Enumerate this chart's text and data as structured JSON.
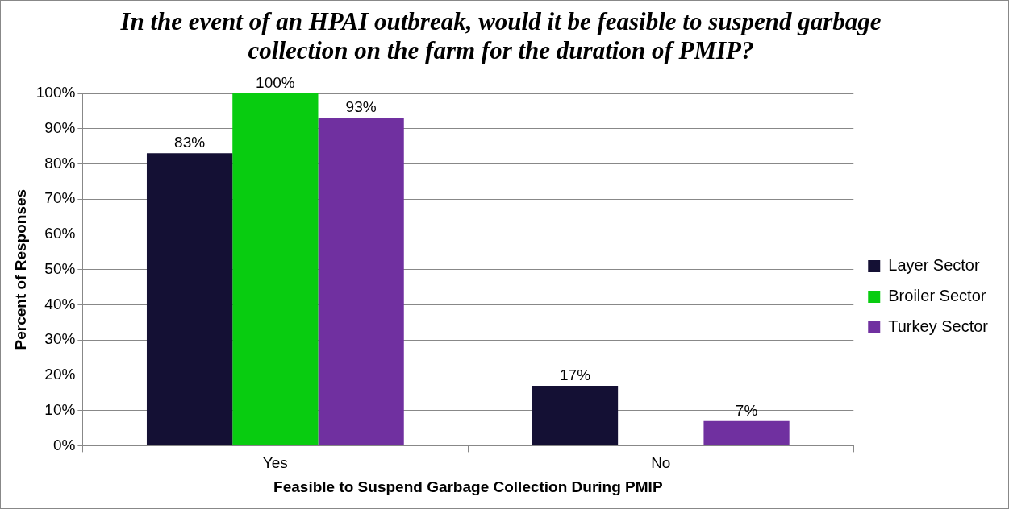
{
  "chart_data": {
    "type": "bar",
    "title": "In the event of an HPAI outbreak, would it be feasible to suspend garbage collection on the farm for the duration of PMIP?",
    "xlabel": "Feasible to Suspend Garbage Collection During PMIP",
    "ylabel": "Percent of Responses",
    "categories": [
      "Yes",
      "No"
    ],
    "series": [
      {
        "name": "Layer Sector",
        "color": "#141034",
        "values": [
          83,
          17
        ],
        "value_labels": [
          "83%",
          "17%"
        ]
      },
      {
        "name": "Broiler Sector",
        "color": "#08cc10",
        "values": [
          100,
          0
        ],
        "value_labels": [
          "100%",
          null
        ]
      },
      {
        "name": "Turkey Sector",
        "color": "#7030a0",
        "values": [
          93,
          7
        ],
        "value_labels": [
          "93%",
          "7%"
        ]
      }
    ],
    "ylim": [
      0,
      100
    ],
    "yticks": [
      {
        "value": 0,
        "label": "0%"
      },
      {
        "value": 10,
        "label": "10%"
      },
      {
        "value": 20,
        "label": "20%"
      },
      {
        "value": 30,
        "label": "30%"
      },
      {
        "value": 40,
        "label": "40%"
      },
      {
        "value": 50,
        "label": "50%"
      },
      {
        "value": 60,
        "label": "60%"
      },
      {
        "value": 70,
        "label": "70%"
      },
      {
        "value": 80,
        "label": "80%"
      },
      {
        "value": 90,
        "label": "90%"
      },
      {
        "value": 100,
        "label": "100%"
      }
    ],
    "grid": "y",
    "legend": "right"
  }
}
